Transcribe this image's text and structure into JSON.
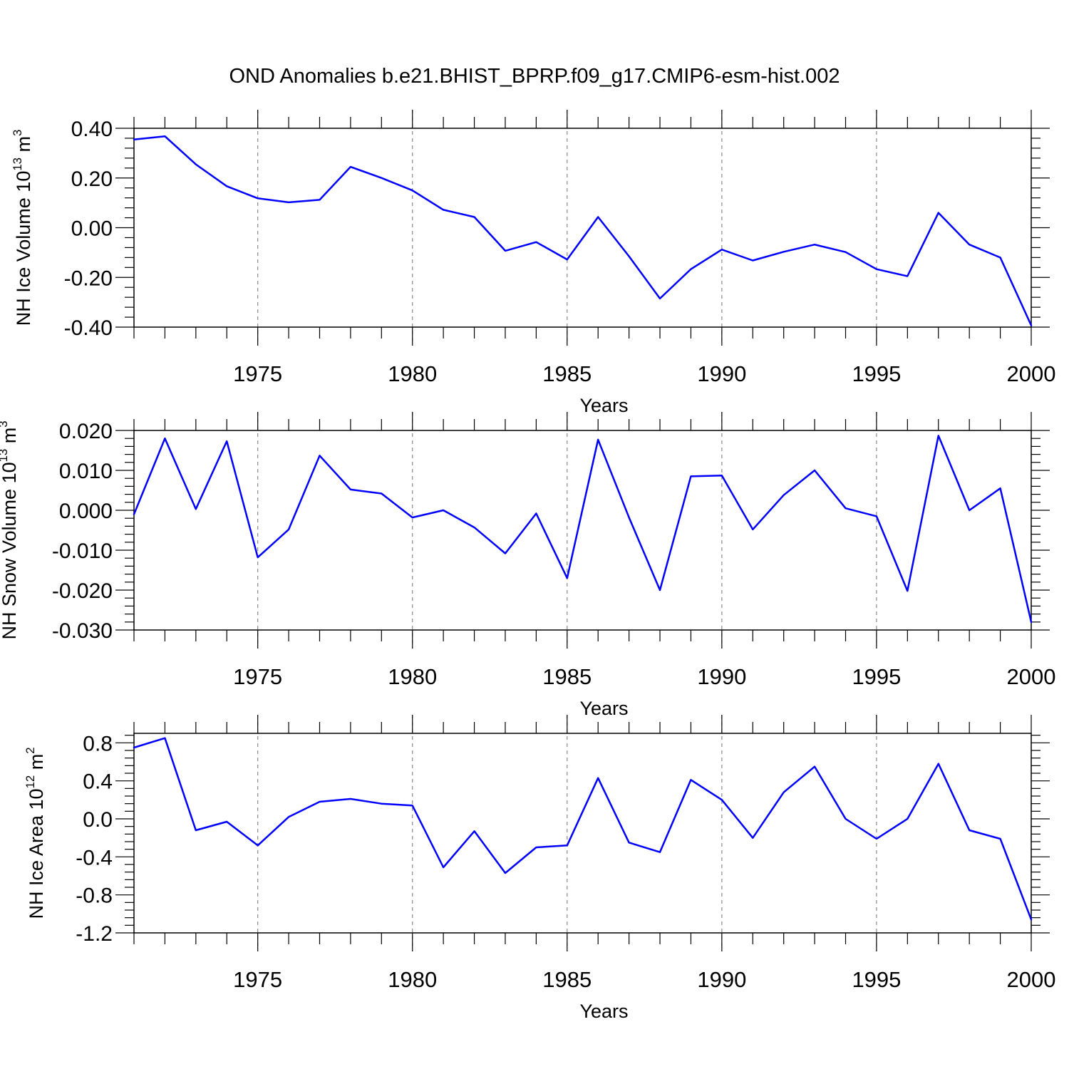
{
  "title": "OND Anomalies b.e21.BHIST_BPRP.f09_g17.CMIP6-esm-hist.002",
  "colors": {
    "series": "#0000ff",
    "axes": "#000000",
    "grid": "#888888"
  },
  "chart_data": [
    {
      "type": "line",
      "ylabel": "NH Ice Volume 10",
      "ylabel_exp": "13",
      "ylabel_unit": " m",
      "ylabel_unit_exp": "3",
      "xlabel": "Years",
      "xlim": [
        1971,
        2000
      ],
      "ylim": [
        -0.4,
        0.4
      ],
      "x_ticks": [
        1975,
        1980,
        1985,
        1990,
        1995,
        2000
      ],
      "x_tick_labels": [
        "1975",
        "1980",
        "1985",
        "1990",
        "1995",
        "2000"
      ],
      "y_ticks": [
        -0.4,
        -0.2,
        0.0,
        0.2,
        0.4
      ],
      "y_tick_labels": [
        "-0.40",
        "-0.20",
        "0.00",
        "0.20",
        "0.40"
      ],
      "grid": "vertical dashed at labeled years",
      "x": [
        1971,
        1972,
        1973,
        1974,
        1975,
        1976,
        1977,
        1978,
        1979,
        1980,
        1981,
        1982,
        1983,
        1984,
        1985,
        1986,
        1987,
        1988,
        1989,
        1990,
        1991,
        1992,
        1993,
        1994,
        1995,
        1996,
        1997,
        1998,
        1999,
        2000
      ],
      "values": [
        0.355,
        0.368,
        0.255,
        0.167,
        0.118,
        0.102,
        0.112,
        0.245,
        0.2,
        0.15,
        0.072,
        0.043,
        -0.093,
        -0.058,
        -0.128,
        0.043,
        -0.115,
        -0.285,
        -0.167,
        -0.088,
        -0.132,
        -0.097,
        -0.068,
        -0.098,
        -0.167,
        -0.195,
        0.06,
        -0.068,
        -0.12,
        -0.393
      ]
    },
    {
      "type": "line",
      "ylabel": "NH Snow Volume 10",
      "ylabel_exp": "13",
      "ylabel_unit": " m",
      "ylabel_unit_exp": "3",
      "xlabel": "Years",
      "xlim": [
        1971,
        2000
      ],
      "ylim": [
        -0.03,
        0.02
      ],
      "x_ticks": [
        1975,
        1980,
        1985,
        1990,
        1995,
        2000
      ],
      "x_tick_labels": [
        "1975",
        "1980",
        "1985",
        "1990",
        "1995",
        "2000"
      ],
      "y_ticks": [
        -0.03,
        -0.02,
        -0.01,
        0.0,
        0.01,
        0.02
      ],
      "y_tick_labels": [
        "-0.030",
        "-0.020",
        "-0.010",
        "0.000",
        "0.010",
        "0.020"
      ],
      "grid": "vertical dashed at labeled years",
      "x": [
        1971,
        1972,
        1973,
        1974,
        1975,
        1976,
        1977,
        1978,
        1979,
        1980,
        1981,
        1982,
        1983,
        1984,
        1985,
        1986,
        1987,
        1988,
        1989,
        1990,
        1991,
        1992,
        1993,
        1994,
        1995,
        1996,
        1997,
        1998,
        1999,
        2000
      ],
      "values": [
        -0.001,
        0.018,
        0.0003,
        0.0173,
        -0.0118,
        -0.0048,
        0.0137,
        0.0052,
        0.0042,
        -0.0018,
        0.0,
        -0.0043,
        -0.0108,
        -0.0008,
        -0.017,
        0.0177,
        -0.0018,
        -0.02,
        0.0085,
        0.0087,
        -0.0048,
        0.0038,
        0.01,
        0.0005,
        -0.0015,
        -0.0202,
        0.0187,
        0.0,
        0.0055,
        -0.028
      ]
    },
    {
      "type": "line",
      "ylabel": "NH Ice Area 10",
      "ylabel_exp": "12",
      "ylabel_unit": " m",
      "ylabel_unit_exp": "2",
      "xlabel": "Years",
      "xlim": [
        1971,
        2000
      ],
      "ylim": [
        -1.2,
        0.9
      ],
      "x_ticks": [
        1975,
        1980,
        1985,
        1990,
        1995,
        2000
      ],
      "x_tick_labels": [
        "1975",
        "1980",
        "1985",
        "1990",
        "1995",
        "2000"
      ],
      "y_ticks": [
        -1.2,
        -0.8,
        -0.4,
        0.0,
        0.4,
        0.8
      ],
      "y_tick_labels": [
        "-1.2",
        "-0.8",
        "-0.4",
        "0.0",
        "0.4",
        "0.8"
      ],
      "grid": "vertical dashed at labeled years",
      "x": [
        1971,
        1972,
        1973,
        1974,
        1975,
        1976,
        1977,
        1978,
        1979,
        1980,
        1981,
        1982,
        1983,
        1984,
        1985,
        1986,
        1987,
        1988,
        1989,
        1990,
        1991,
        1992,
        1993,
        1994,
        1995,
        1996,
        1997,
        1998,
        1999,
        2000
      ],
      "values": [
        0.75,
        0.85,
        -0.12,
        -0.03,
        -0.28,
        0.02,
        0.18,
        0.21,
        0.16,
        0.14,
        -0.51,
        -0.13,
        -0.57,
        -0.3,
        -0.28,
        0.43,
        -0.25,
        -0.35,
        0.41,
        0.2,
        -0.2,
        0.28,
        0.55,
        0.0,
        -0.21,
        0.0,
        0.58,
        -0.12,
        -0.21,
        -1.06
      ]
    }
  ]
}
